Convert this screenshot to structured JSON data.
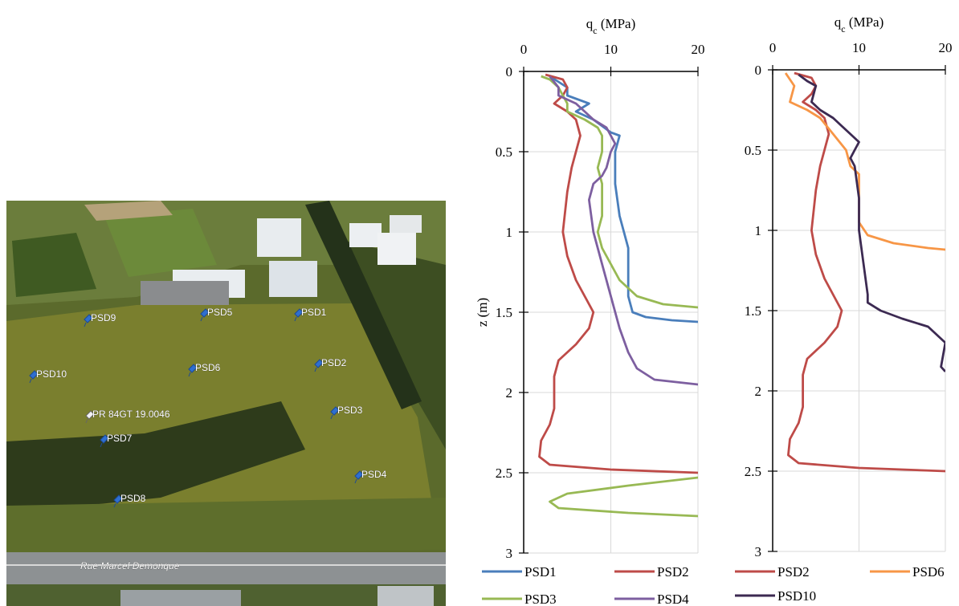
{
  "photo": {
    "labels": [
      "PSD9",
      "PSD5",
      "PSD1",
      "PSD10",
      "PSD6",
      "PSD2",
      "PR 84GT 19.0046",
      "PSD3",
      "PSD7",
      "PSD4",
      "PSD8"
    ],
    "street": "Rue Marcel Demonque"
  },
  "chart_data": [
    {
      "type": "line",
      "x_label": [
        "q",
        "c",
        " (MPa)"
      ],
      "y_label": "z (m)",
      "xlim": [
        0,
        20
      ],
      "xticks": [
        0,
        10,
        20
      ],
      "ylim": [
        0,
        3
      ],
      "yticks": [
        0,
        0.5,
        1,
        1.5,
        2,
        2.5,
        3
      ],
      "y_inverted": true,
      "grid": true,
      "series": [
        {
          "name": "PSD1",
          "color": "#4a7ebb",
          "x": [
            3,
            5,
            5,
            7.5,
            6,
            8,
            10,
            11,
            10.5,
            10.5,
            10.5,
            11,
            11.5,
            12,
            12,
            12,
            12.5,
            14,
            17,
            20,
            22
          ],
          "y": [
            0.03,
            0.1,
            0.15,
            0.2,
            0.25,
            0.3,
            0.38,
            0.4,
            0.5,
            0.6,
            0.7,
            0.9,
            1.0,
            1.1,
            1.3,
            1.4,
            1.5,
            1.53,
            1.55,
            1.56,
            1.57
          ]
        },
        {
          "name": "PSD2",
          "color": "#be4b48",
          "x": [
            2.5,
            4.5,
            5,
            4.5,
            3.5,
            5,
            6,
            6.5,
            6,
            5.5,
            5,
            4.5,
            5,
            6,
            7.5,
            8,
            7.5,
            6,
            4,
            3.5,
            3.5,
            3,
            2,
            1.8,
            3,
            10,
            20,
            22
          ],
          "y": [
            0.02,
            0.05,
            0.1,
            0.15,
            0.2,
            0.25,
            0.3,
            0.4,
            0.5,
            0.6,
            0.75,
            1.0,
            1.15,
            1.3,
            1.45,
            1.5,
            1.6,
            1.7,
            1.8,
            1.9,
            2.1,
            2.2,
            2.3,
            2.4,
            2.45,
            2.48,
            2.5,
            2.5
          ]
        },
        {
          "name": "PSD3",
          "color": "#98b954",
          "x": [
            2,
            3,
            4,
            5,
            5,
            7,
            8.5,
            9,
            9,
            8.5,
            9,
            9,
            8.5,
            9,
            10,
            11,
            13,
            16,
            20,
            22,
            null,
            22,
            20,
            12,
            5,
            3,
            4,
            12,
            20,
            22
          ],
          "y": [
            0.03,
            0.05,
            0.1,
            0.2,
            0.25,
            0.3,
            0.35,
            0.4,
            0.5,
            0.6,
            0.7,
            0.9,
            1.0,
            1.1,
            1.2,
            1.3,
            1.4,
            1.45,
            1.47,
            1.48,
            null,
            2.52,
            2.53,
            2.58,
            2.63,
            2.68,
            2.72,
            2.75,
            2.77,
            2.78
          ]
        },
        {
          "name": "PSD4",
          "color": "#7d5fa0",
          "x": [
            3,
            4,
            4,
            6,
            7,
            8,
            9.5,
            10,
            10.5,
            10,
            9.5,
            9,
            8,
            7.5,
            8,
            9,
            10,
            11,
            12,
            13,
            15,
            20,
            22
          ],
          "y": [
            0.03,
            0.1,
            0.15,
            0.2,
            0.25,
            0.3,
            0.35,
            0.4,
            0.45,
            0.5,
            0.6,
            0.65,
            0.7,
            0.8,
            1.0,
            1.2,
            1.4,
            1.6,
            1.75,
            1.85,
            1.92,
            1.95,
            1.95
          ]
        }
      ]
    },
    {
      "type": "line",
      "x_label": [
        "q",
        "c",
        " (MPa)"
      ],
      "xlim": [
        0,
        20
      ],
      "xticks": [
        0,
        10,
        20
      ],
      "ylim": [
        0,
        3
      ],
      "yticks": [
        0,
        0.5,
        1,
        1.5,
        2,
        2.5,
        3
      ],
      "y_inverted": true,
      "grid": true,
      "series": [
        {
          "name": "PSD2",
          "color": "#be4b48",
          "x": [
            2.5,
            4.5,
            5,
            4.5,
            3.5,
            5,
            6,
            6.5,
            6,
            5.5,
            5,
            4.5,
            5,
            6,
            7.5,
            8,
            7.5,
            6,
            4,
            3.5,
            3.5,
            3,
            2,
            1.8,
            3,
            10,
            20,
            22
          ],
          "y": [
            0.02,
            0.05,
            0.1,
            0.15,
            0.2,
            0.25,
            0.3,
            0.4,
            0.5,
            0.6,
            0.75,
            1.0,
            1.15,
            1.3,
            1.45,
            1.5,
            1.6,
            1.7,
            1.8,
            1.9,
            2.1,
            2.2,
            2.3,
            2.4,
            2.45,
            2.48,
            2.5,
            2.5
          ]
        },
        {
          "name": "PSD6",
          "color": "#f79646",
          "x": [
            1.5,
            2.5,
            2,
            4,
            5.5,
            7,
            8.5,
            9,
            10,
            10,
            10,
            11,
            14,
            18,
            20,
            22
          ],
          "y": [
            0.02,
            0.1,
            0.2,
            0.25,
            0.3,
            0.4,
            0.5,
            0.6,
            0.65,
            0.8,
            0.95,
            1.03,
            1.08,
            1.11,
            1.12,
            1.13
          ]
        },
        {
          "name": "PSD10",
          "color": "#3c2a52",
          "x": [
            3,
            4,
            5,
            4.5,
            5.5,
            7,
            8,
            9,
            10,
            9.5,
            9,
            9.5,
            10,
            10,
            10.5,
            11,
            11,
            12.5,
            15,
            18,
            20,
            19.5,
            20
          ],
          "y": [
            0.03,
            0.07,
            0.1,
            0.2,
            0.25,
            0.3,
            0.35,
            0.4,
            0.45,
            0.5,
            0.55,
            0.6,
            0.8,
            1.0,
            1.2,
            1.4,
            1.45,
            1.5,
            1.55,
            1.6,
            1.7,
            1.85,
            1.88
          ]
        }
      ]
    }
  ]
}
